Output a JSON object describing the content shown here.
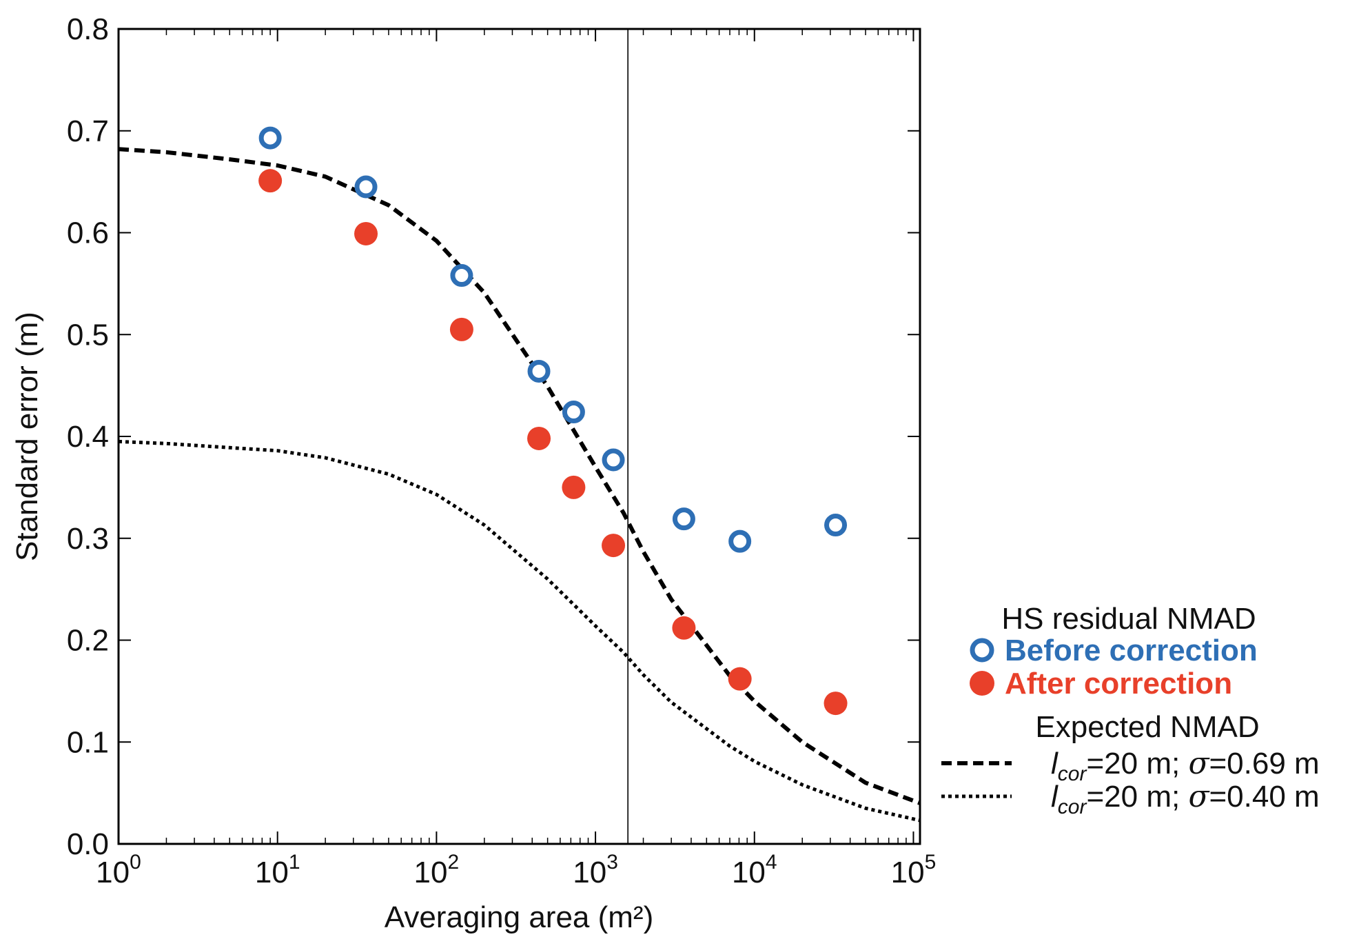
{
  "chart_data": {
    "type": "scatter",
    "xscale": "log",
    "xlim": [
      1,
      110000
    ],
    "ylim": [
      0.0,
      0.8
    ],
    "xlabel": "Averaging area (m²)",
    "ylabel": "Standard error (m)",
    "x_ticks": [
      {
        "value": 1,
        "base": "10",
        "exp": "0"
      },
      {
        "value": 10,
        "base": "10",
        "exp": "1"
      },
      {
        "value": 100,
        "base": "10",
        "exp": "2"
      },
      {
        "value": 1000,
        "base": "10",
        "exp": "3"
      },
      {
        "value": 10000,
        "base": "10",
        "exp": "4"
      },
      {
        "value": 100000,
        "base": "10",
        "exp": "5"
      }
    ],
    "y_ticks": [
      {
        "value": 0.0,
        "label": "0.0"
      },
      {
        "value": 0.1,
        "label": "0.1"
      },
      {
        "value": 0.2,
        "label": "0.2"
      },
      {
        "value": 0.3,
        "label": "0.3"
      },
      {
        "value": 0.4,
        "label": "0.4"
      },
      {
        "value": 0.5,
        "label": "0.5"
      },
      {
        "value": 0.6,
        "label": "0.6"
      },
      {
        "value": 0.7,
        "label": "0.7"
      },
      {
        "value": 0.8,
        "label": "0.8"
      }
    ],
    "vline_x": 1600,
    "series": [
      {
        "name": "Before correction",
        "marker": "open-circle",
        "color": "#2e6fb5",
        "x": [
          9,
          36,
          144,
          441,
          729,
          1296,
          3600,
          8100,
          32400
        ],
        "y": [
          0.693,
          0.645,
          0.558,
          0.464,
          0.424,
          0.377,
          0.319,
          0.297,
          0.313
        ]
      },
      {
        "name": "After correction",
        "marker": "filled-circle",
        "color": "#e8402a",
        "x": [
          9,
          36,
          144,
          441,
          729,
          1296,
          3600,
          8100,
          32400
        ],
        "y": [
          0.651,
          0.599,
          0.505,
          0.398,
          0.35,
          0.293,
          0.212,
          0.162,
          0.138
        ]
      }
    ],
    "curves": [
      {
        "name": "lcor=20 m; σ=0.69 m",
        "style": "dashed",
        "color": "#000000",
        "x": [
          1,
          2,
          5,
          10,
          20,
          50,
          100,
          200,
          500,
          1000,
          1500,
          2000,
          3000,
          5000,
          7000,
          10000,
          20000,
          50000,
          110000
        ],
        "y": [
          0.682,
          0.679,
          0.672,
          0.666,
          0.655,
          0.627,
          0.592,
          0.541,
          0.449,
          0.37,
          0.325,
          0.287,
          0.24,
          0.195,
          0.165,
          0.14,
          0.1,
          0.06,
          0.04
        ]
      },
      {
        "name": "lcor=20 m; σ=0.40 m",
        "style": "dotted",
        "color": "#000000",
        "x": [
          1,
          2,
          5,
          10,
          20,
          50,
          100,
          200,
          500,
          1000,
          1500,
          2000,
          3000,
          5000,
          7000,
          10000,
          20000,
          50000,
          110000
        ],
        "y": [
          0.395,
          0.393,
          0.389,
          0.386,
          0.379,
          0.363,
          0.343,
          0.313,
          0.26,
          0.214,
          0.188,
          0.166,
          0.139,
          0.113,
          0.096,
          0.081,
          0.058,
          0.035,
          0.023
        ]
      }
    ],
    "legend": {
      "title1": "HS residual NMAD",
      "before_label": "Before correction",
      "after_label": "After correction",
      "title2": "Expected NMAD",
      "curve_prefix": "l",
      "curve_sub": "cor",
      "curve_eq": "=20 m; ",
      "sigma_symbol": "σ",
      "sigma1": "=0.69 m",
      "sigma2": "=0.40 m"
    }
  }
}
